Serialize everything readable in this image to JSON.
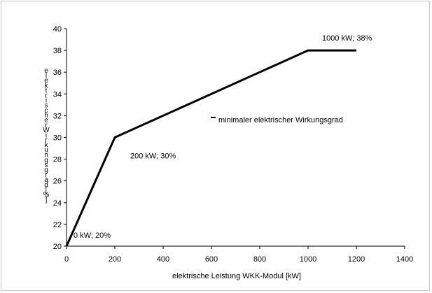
{
  "chart_data": {
    "type": "line",
    "title": "",
    "xlabel": "elektrische Leistung WKK-Modul  [kW]",
    "ylabel": "elektrischer Wirkungsgrad [%]",
    "xlim": [
      0,
      1400
    ],
    "ylim": [
      20,
      40
    ],
    "x_ticks": [
      0,
      200,
      400,
      600,
      800,
      1000,
      1200,
      1400
    ],
    "y_ticks": [
      20,
      22,
      24,
      26,
      28,
      30,
      32,
      34,
      36,
      38,
      40
    ],
    "grid": false,
    "legend_position": "center-right",
    "series": [
      {
        "name": "minimaler elektrischer Wirkungsgrad",
        "color": "#000000",
        "x": [
          0,
          200,
          1000,
          1200
        ],
        "y": [
          20,
          30,
          38,
          38
        ]
      }
    ],
    "annotations": [
      {
        "text": "0 kW; 20%",
        "x": 0,
        "y": 20
      },
      {
        "text": "200 kW; 30%",
        "x": 200,
        "y": 30
      },
      {
        "text": "1000 kW; 38%",
        "x": 1000,
        "y": 38
      }
    ]
  }
}
